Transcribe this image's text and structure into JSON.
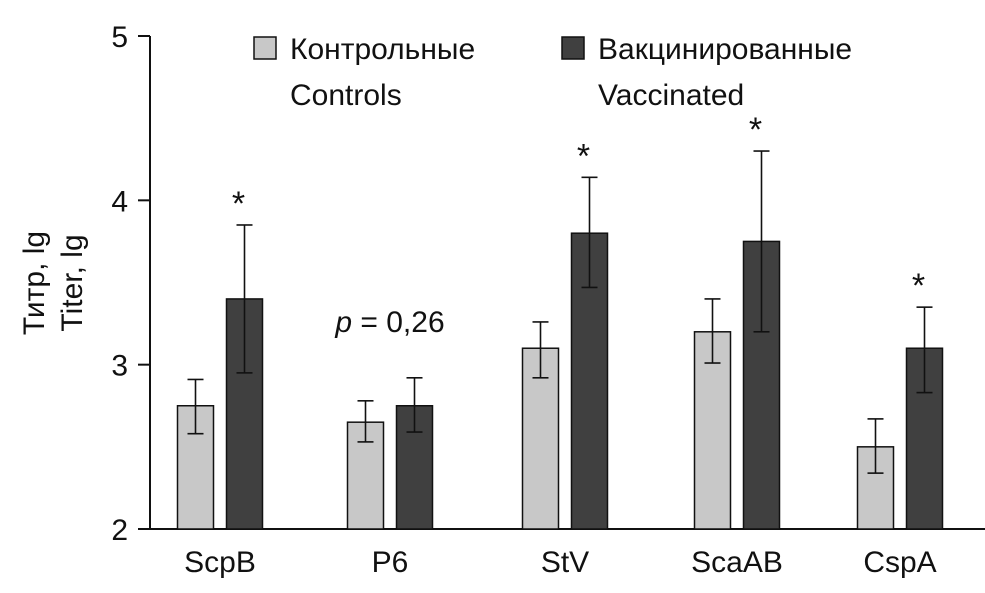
{
  "chart_data": {
    "type": "bar",
    "ylabel": "Титр, lg",
    "ylabel_en": "Titer, lg",
    "ylim": [
      2,
      5
    ],
    "yticks": [
      "2",
      "3",
      "4",
      "5"
    ],
    "categories": [
      "ScpB",
      "P6",
      "StV",
      "ScaAB",
      "CspA"
    ],
    "series": [
      {
        "name": "Контрольные",
        "name_en": "Controls",
        "color": "#c8c8c8",
        "values": [
          2.75,
          2.65,
          3.1,
          3.2,
          2.5
        ],
        "err_low": [
          2.58,
          2.53,
          2.92,
          3.01,
          2.34
        ],
        "err_high": [
          2.91,
          2.78,
          3.26,
          3.4,
          2.67
        ]
      },
      {
        "name": "Вакцинированные",
        "name_en": "Vaccinated",
        "color": "#404040",
        "values": [
          3.4,
          2.75,
          3.8,
          3.75,
          3.1
        ],
        "err_low": [
          2.95,
          2.59,
          3.47,
          3.2,
          2.83
        ],
        "err_high": [
          3.85,
          2.92,
          4.14,
          4.3,
          3.35
        ]
      }
    ],
    "significance": [
      "*",
      "",
      "*",
      "*",
      "*"
    ],
    "p_annotation": {
      "category": "P6",
      "italic": "p",
      "rest": " = 0,26"
    },
    "legend_position": "top",
    "grid": false
  }
}
